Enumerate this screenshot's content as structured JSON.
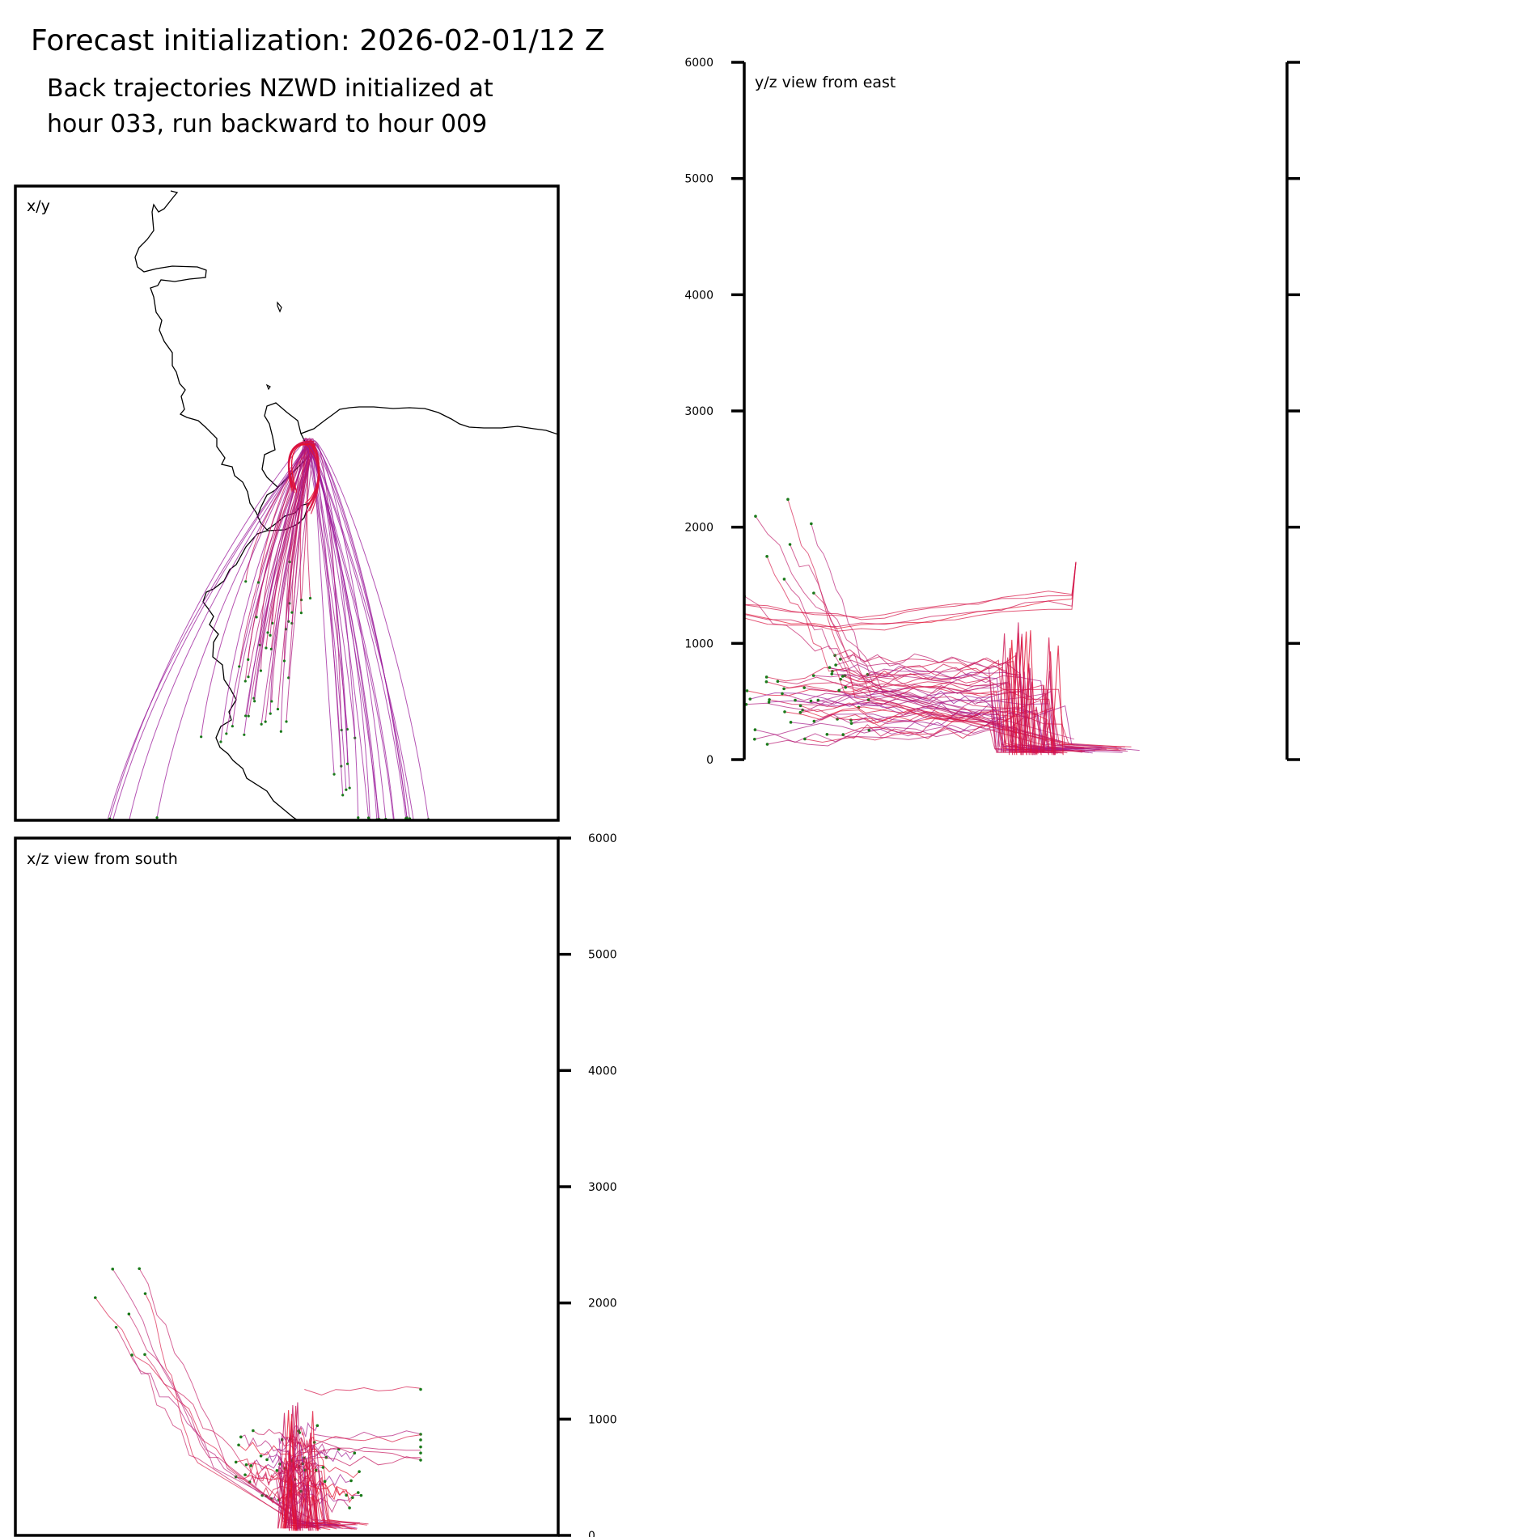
{
  "header": {
    "title": "Forecast initialization: 2026-02-01/12 Z",
    "subtitle_line1": "Back trajectories NZWD initialized at",
    "subtitle_line2": "hour 033, run backward to hour 009"
  },
  "colors": {
    "trajectory_start": "#9b1b9b",
    "trajectory_end": "#e8102a",
    "endpoint_marker": "#1a7a1a",
    "coastline": "#000000"
  },
  "chart_data": [
    {
      "type": "line",
      "panel": "xy",
      "title": "x/y",
      "description_series": "back trajectories in horizontal plane",
      "xlabel": "",
      "ylabel": ""
    },
    {
      "type": "line",
      "panel": "yz",
      "title": "y/z view from east",
      "ylim": [
        0,
        6000
      ],
      "yticks": [
        0,
        1000,
        2000,
        3000,
        4000,
        5000,
        6000
      ],
      "ytick_labels": [
        "0",
        "1000",
        "2000",
        "3000",
        "4000",
        "5000",
        "6000"
      ]
    },
    {
      "type": "line",
      "panel": "xz",
      "title": "x/z view from south",
      "ylim": [
        0,
        6000
      ],
      "yticks": [
        0,
        1000,
        2000,
        3000,
        4000,
        5000,
        6000
      ],
      "ytick_labels": [
        "0",
        "1000",
        "2000",
        "3000",
        "4000",
        "5000",
        "6000"
      ]
    }
  ]
}
